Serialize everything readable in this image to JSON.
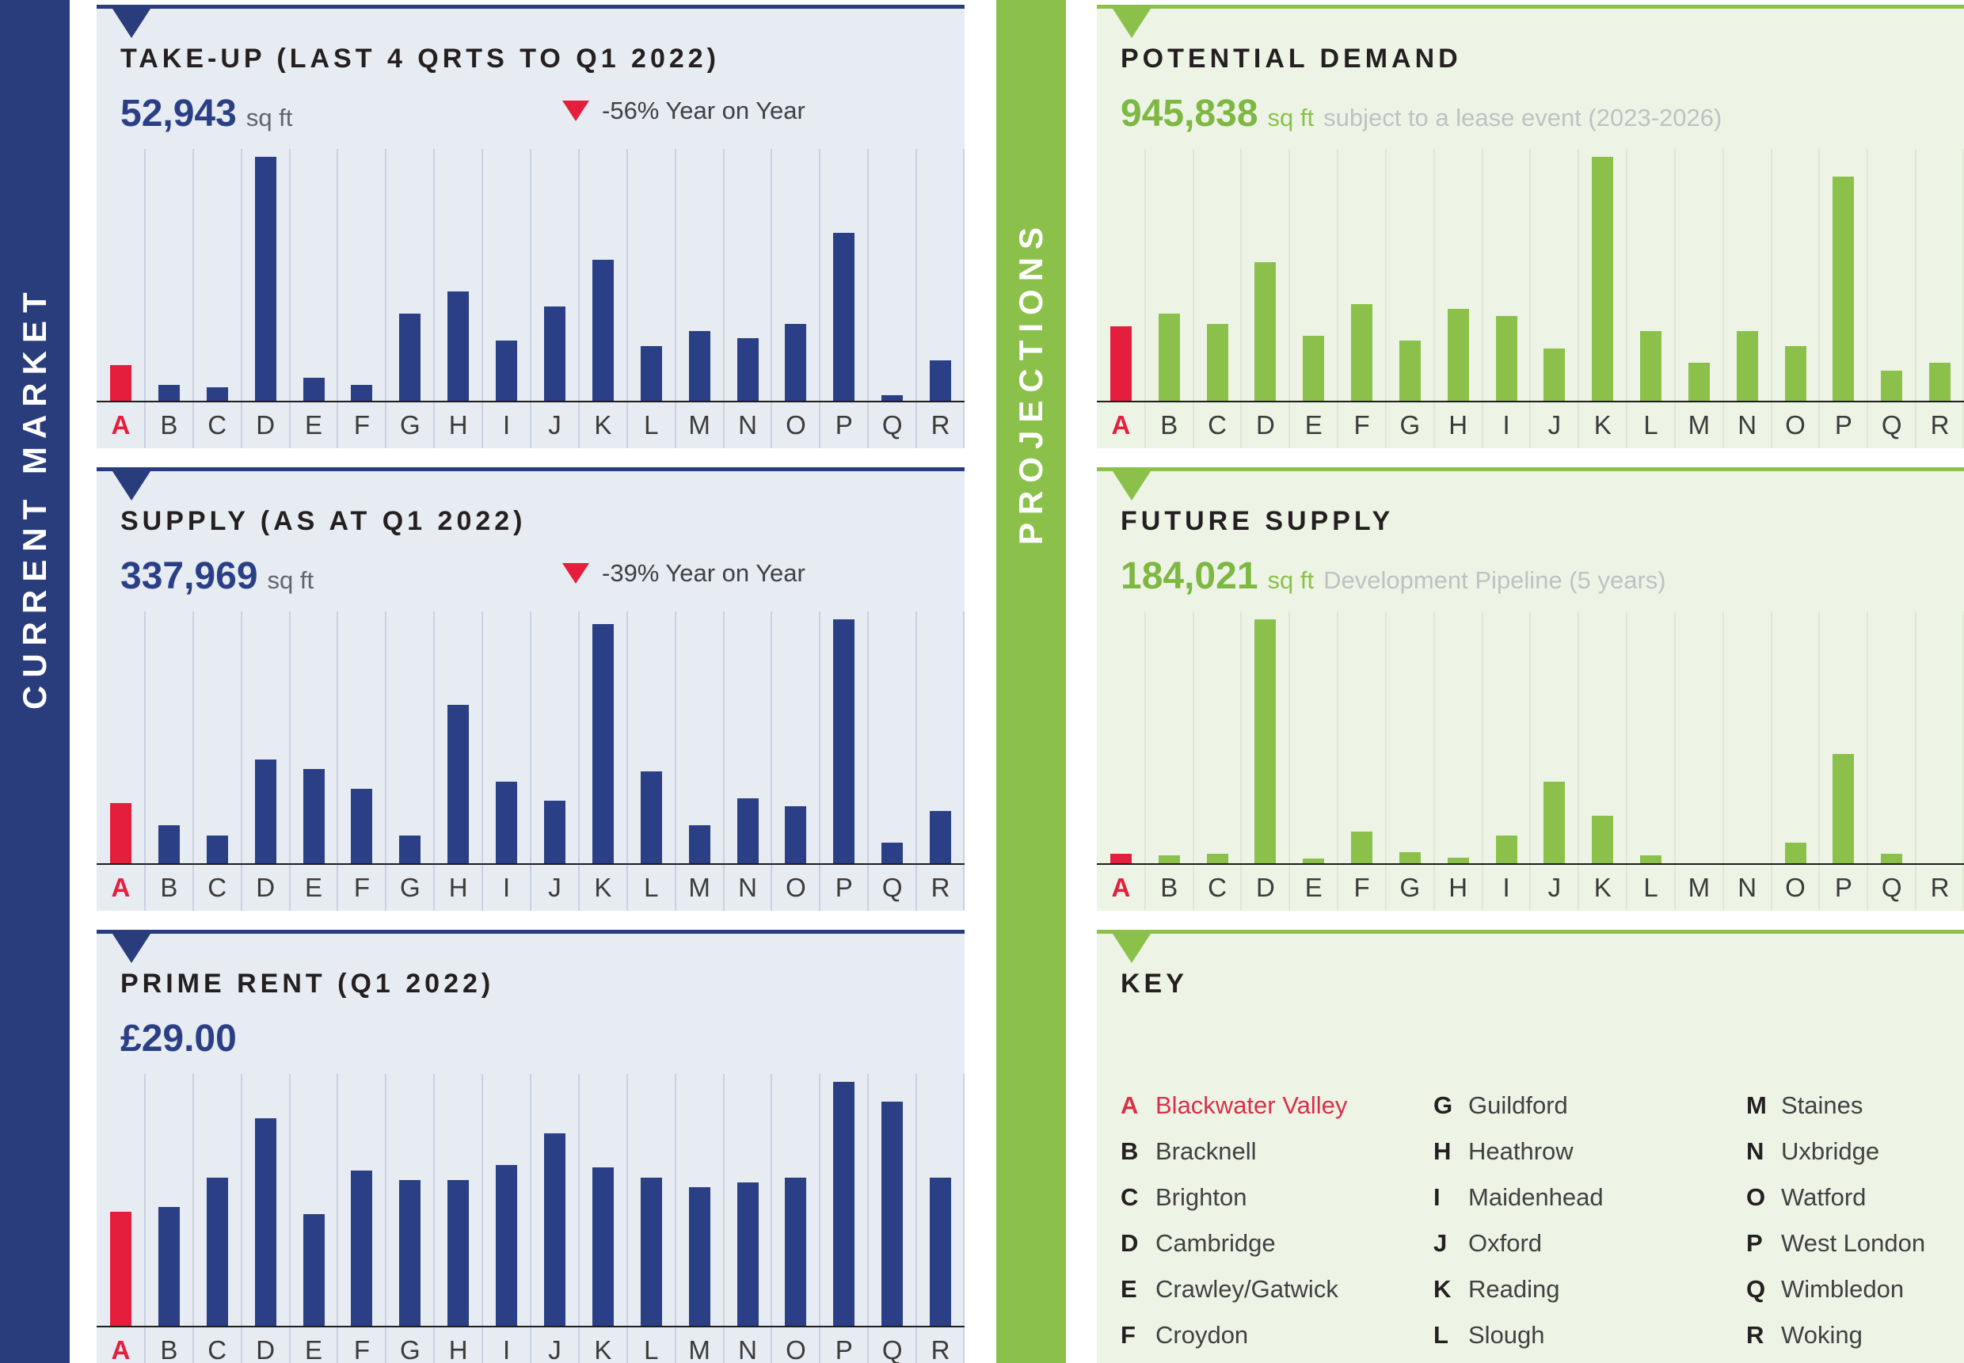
{
  "bands": {
    "current_market": "CURRENT MARKET",
    "projections": "PROJECTIONS"
  },
  "categories": [
    "A",
    "B",
    "C",
    "D",
    "E",
    "F",
    "G",
    "H",
    "I",
    "J",
    "K",
    "L",
    "M",
    "N",
    "O",
    "P",
    "Q",
    "R"
  ],
  "colors": {
    "navy_band": "#293d7d",
    "navy_bar": "#2a3f85",
    "red_highlight": "#e41e3c",
    "green_band": "#8bc14a",
    "green_bar": "#8bc14a",
    "green_text": "#7eb843",
    "panel_bg_left": "#e7ebf2",
    "panel_bg_right": "#eef4e5",
    "grid_left": "#c9d2e2",
    "grid_right": "#dfe8d4",
    "title_text": "#242021",
    "note_gray": "#bfc1c3",
    "baseline": "#1d1d1b"
  },
  "key": {
    "title": "KEY",
    "entries": [
      {
        "letter": "A",
        "name": "Blackwater Valley",
        "highlight": true
      },
      {
        "letter": "B",
        "name": "Bracknell",
        "highlight": false
      },
      {
        "letter": "C",
        "name": "Brighton",
        "highlight": false
      },
      {
        "letter": "D",
        "name": "Cambridge",
        "highlight": false
      },
      {
        "letter": "E",
        "name": "Crawley/Gatwick",
        "highlight": false
      },
      {
        "letter": "F",
        "name": "Croydon",
        "highlight": false
      },
      {
        "letter": "G",
        "name": "Guildford",
        "highlight": false
      },
      {
        "letter": "H",
        "name": "Heathrow",
        "highlight": false
      },
      {
        "letter": "I",
        "name": "Maidenhead",
        "highlight": false
      },
      {
        "letter": "J",
        "name": "Oxford",
        "highlight": false
      },
      {
        "letter": "K",
        "name": "Reading",
        "highlight": false
      },
      {
        "letter": "L",
        "name": "Slough",
        "highlight": false
      },
      {
        "letter": "M",
        "name": "Staines",
        "highlight": false
      },
      {
        "letter": "N",
        "name": "Uxbridge",
        "highlight": false
      },
      {
        "letter": "O",
        "name": "Watford",
        "highlight": false
      },
      {
        "letter": "P",
        "name": "West London",
        "highlight": false
      },
      {
        "letter": "Q",
        "name": "Wimbledon",
        "highlight": false
      },
      {
        "letter": "R",
        "name": "Woking",
        "highlight": false
      }
    ]
  },
  "chart_data": [
    {
      "id": "take-up",
      "type": "bar",
      "title": "TAKE-UP (LAST 4 QRTS TO Q1 2022)",
      "stat_value": "52,943",
      "stat_unit": "sq ft",
      "yoy_label": "-56% Year on Year",
      "yoy_direction": "down",
      "highlight_category": "A",
      "value_axis": "none shown; values are % of tallest bar (D)",
      "values": [
        15,
        7,
        6,
        100,
        10,
        7,
        36,
        45,
        25,
        39,
        58,
        23,
        29,
        26,
        32,
        69,
        3,
        17
      ]
    },
    {
      "id": "supply",
      "type": "bar",
      "title": "SUPPLY (AS AT Q1 2022)",
      "stat_value": "337,969",
      "stat_unit": "sq ft",
      "yoy_label": "-39% Year on Year",
      "yoy_direction": "down",
      "highlight_category": "A",
      "value_axis": "none shown; values are % of tallest bar (P)",
      "values": [
        25,
        16,
        12,
        43,
        39,
        31,
        12,
        65,
        34,
        26,
        98,
        38,
        16,
        27,
        24,
        100,
        9,
        22
      ]
    },
    {
      "id": "prime-rent",
      "type": "bar",
      "title": "PRIME RENT (Q1 2022)",
      "stat_value": "£29.00",
      "highlight_category": "A",
      "value_axis": "none shown; values are % of tallest bar (P); A = £29.00",
      "values": [
        47,
        49,
        61,
        85,
        46,
        64,
        60,
        60,
        66,
        79,
        65,
        61,
        57,
        59,
        61,
        100,
        92,
        61
      ]
    },
    {
      "id": "potential-demand",
      "type": "bar",
      "title": "POTENTIAL DEMAND",
      "stat_value": "945,838",
      "stat_unit": "sq ft",
      "stat_note": "subject to a lease event (2023-2026)",
      "highlight_category": "A",
      "value_axis": "none shown; values are % of tallest bar (K)",
      "values": [
        31,
        36,
        32,
        57,
        27,
        40,
        25,
        38,
        35,
        22,
        100,
        29,
        16,
        29,
        23,
        92,
        13,
        16
      ]
    },
    {
      "id": "future-supply",
      "type": "bar",
      "title": "FUTURE SUPPLY",
      "stat_value": "184,021",
      "stat_unit": "sq ft",
      "stat_note": "Development Pipeline (5 years)",
      "highlight_category": "A",
      "value_axis": "none shown; values are % of tallest bar (D); M, N, R have no bar",
      "values": [
        4.5,
        4,
        4.5,
        100,
        2.5,
        13.5,
        5,
        3,
        12,
        34,
        20,
        4,
        0,
        0,
        9,
        45,
        4.5,
        0
      ]
    }
  ]
}
